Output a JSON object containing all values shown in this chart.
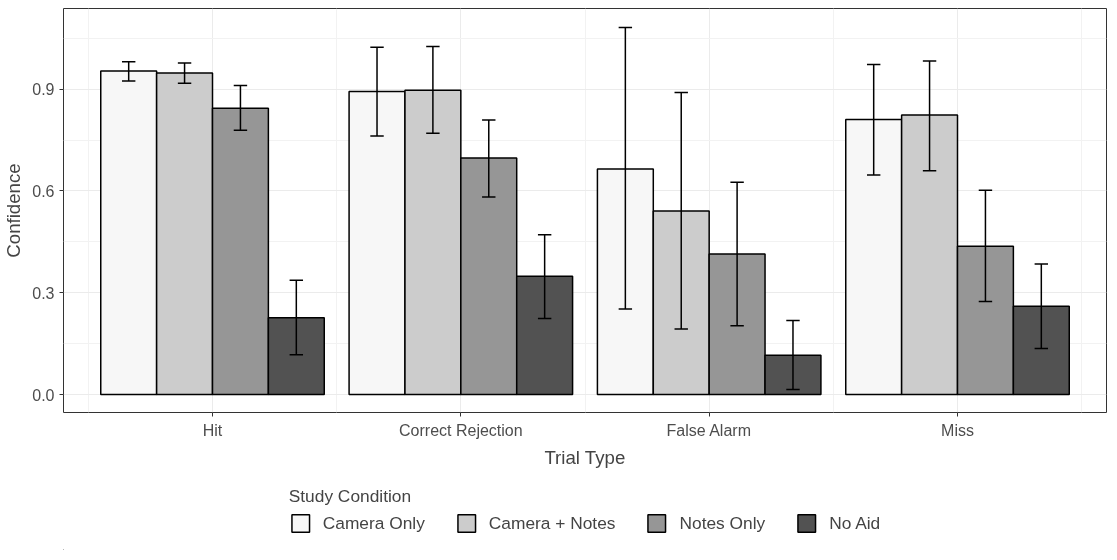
{
  "chart_data": {
    "type": "bar",
    "xlabel": "Trial Type",
    "ylabel": "Confidence",
    "legend_title": "Study Condition",
    "categories": [
      "Hit",
      "Correct Rejection",
      "False Alarm",
      "Miss"
    ],
    "series": [
      {
        "name": "Camera Only",
        "color": "#f7f7f7",
        "values": [
          0.954,
          0.893,
          0.665,
          0.811
        ],
        "errors": [
          [
            0.924,
            0.981
          ],
          [
            0.762,
            1.024
          ],
          [
            0.252,
            1.082
          ],
          [
            0.647,
            0.973
          ]
        ]
      },
      {
        "name": "Camera + Notes",
        "color": "#cccccc",
        "values": [
          0.948,
          0.897,
          0.541,
          0.824
        ],
        "errors": [
          [
            0.918,
            0.977
          ],
          [
            0.77,
            1.026
          ],
          [
            0.193,
            0.89
          ],
          [
            0.66,
            0.983
          ]
        ]
      },
      {
        "name": "Notes Only",
        "color": "#969696",
        "values": [
          0.844,
          0.697,
          0.414,
          0.437
        ],
        "errors": [
          [
            0.779,
            0.911
          ],
          [
            0.582,
            0.809
          ],
          [
            0.203,
            0.626
          ],
          [
            0.274,
            0.602
          ]
        ]
      },
      {
        "name": "No Aid",
        "color": "#525252",
        "values": [
          0.226,
          0.349,
          0.116,
          0.26
        ],
        "errors": [
          [
            0.117,
            0.337
          ],
          [
            0.224,
            0.471
          ],
          [
            0.015,
            0.218
          ],
          [
            0.136,
            0.385
          ]
        ]
      }
    ],
    "ylim": [
      -0.053,
      1.138
    ],
    "yticks": [
      {
        "value": 0,
        "label": "0.0"
      },
      0.3,
      0.6,
      0.9
    ],
    "grid": true,
    "legend": "bottom"
  }
}
